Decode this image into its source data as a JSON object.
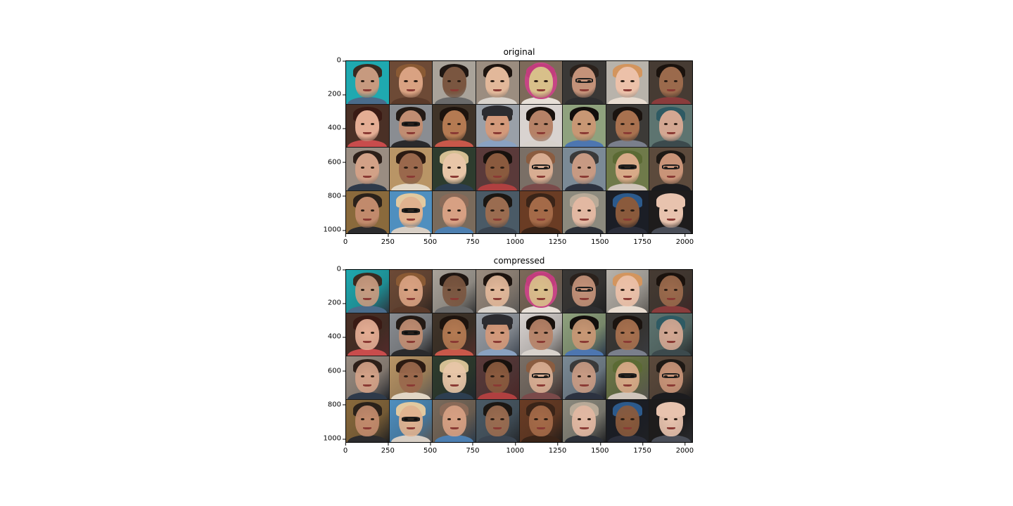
{
  "figure": {
    "panels": [
      {
        "title": "original",
        "yticks": [
          "0",
          "200",
          "400",
          "600",
          "800",
          "1000"
        ],
        "xticks": [
          "0",
          "250",
          "500",
          "750",
          "1000",
          "1250",
          "1500",
          "1750",
          "2000"
        ]
      },
      {
        "title": "compressed",
        "yticks": [
          "0",
          "200",
          "400",
          "600",
          "800",
          "1000"
        ],
        "xticks": [
          "0",
          "250",
          "500",
          "750",
          "1000",
          "1250",
          "1500",
          "1750",
          "2000"
        ]
      }
    ],
    "image_grid": {
      "rows": 4,
      "cols": 8,
      "content": "face-portrait-grid"
    },
    "axis_range": {
      "x": [
        0,
        2048
      ],
      "y": [
        0,
        1024
      ],
      "y_inverted": true
    },
    "tiles": [
      {
        "bg": "#1fa9b0",
        "skin": "#c79a7f",
        "hair": "#3a2a20",
        "shirt": "#4a6b8a"
      },
      {
        "bg": "#6d4a36",
        "skin": "#d9a282",
        "hair": "#8a5a34",
        "shirt": "#5a3a2a"
      },
      {
        "bg": "#a9a39a",
        "skin": "#7a5640",
        "hair": "#1e1612",
        "shirt": "#6a6a6a"
      },
      {
        "bg": "#9b8d80",
        "skin": "#e2b89a",
        "hair": "#1d140f",
        "shirt": "#d9d3cc"
      },
      {
        "bg": "#7d6a5a",
        "skin": "#d8c08a",
        "hair": "#c23d7d",
        "shirt": "#e8e0d8",
        "headscarf": "#c74585"
      },
      {
        "bg": "#3a3836",
        "skin": "#c49279",
        "hair": "#2a211c",
        "shirt": "#2e2e30",
        "glasses": true
      },
      {
        "bg": "#b8b3ab",
        "skin": "#ecc1a9",
        "hair": "#d3955e",
        "shirt": "#e8dcd0"
      },
      {
        "bg": "#463b33",
        "skin": "#9b6a4c",
        "hair": "#1a120d",
        "shirt": "#8a3c3c"
      },
      {
        "bg": "#4a3026",
        "skin": "#e4ad94",
        "hair": "#3a1a14",
        "shirt": "#c94c4c"
      },
      {
        "bg": "#8a8d92",
        "skin": "#c08d72",
        "hair": "#231a15",
        "shirt": "#2a2a2c",
        "glasses": "dark"
      },
      {
        "bg": "#3f3328",
        "skin": "#b47a52",
        "hair": "#1d130d",
        "shirt": "#c8584a"
      },
      {
        "bg": "#9aa0a8",
        "skin": "#d3997a",
        "hair": "#2d2a2b",
        "shirt": "#8aa2c2",
        "cap": "#2c2c30"
      },
      {
        "bg": "#d9d3d0",
        "skin": "#b68267",
        "hair": "#18110d",
        "shirt": "#d8d2cc"
      },
      {
        "bg": "#8fa27e",
        "skin": "#c89774",
        "hair": "#120e0c",
        "shirt": "#4d76b0"
      },
      {
        "bg": "#3c3a37",
        "skin": "#a8714f",
        "hair": "#1a130f",
        "shirt": "#7a7f8c"
      },
      {
        "bg": "#5d7470",
        "skin": "#d3a792",
        "hair": "#2e5a63",
        "shirt": "#3c4a4d"
      },
      {
        "bg": "#9a8d82",
        "skin": "#d2a187",
        "hair": "#2c1f19",
        "shirt": "#2e3a4a"
      },
      {
        "bg": "#b99566",
        "skin": "#9a684c",
        "hair": "#2b1a12",
        "shirt": "#e2d7c6"
      },
      {
        "bg": "#2e3c2e",
        "skin": "#e8c6a8",
        "hair": "#d4bf93",
        "shirt": "#2d3e50"
      },
      {
        "bg": "#5a3a3a",
        "skin": "#8a5a3e",
        "hair": "#18110d",
        "shirt": "#b04040"
      },
      {
        "bg": "#7a6f66",
        "skin": "#d8ad92",
        "hair": "#8a5c40",
        "shirt": "#7a4a4a",
        "glasses": true
      },
      {
        "bg": "#7b8a96",
        "skin": "#c79a83",
        "hair": "#3a3a3a",
        "shirt": "#2c3240"
      },
      {
        "bg": "#6f7a4a",
        "skin": "#d8aa88",
        "hair": "#5b6a34",
        "shirt": "#cfc5bb",
        "glasses": "dark"
      },
      {
        "bg": "#5c4a3c",
        "skin": "#c99478",
        "hair": "#1e1915",
        "shirt": "#1c1c1f",
        "glasses": true
      },
      {
        "bg": "#8a6a3c",
        "skin": "#c18a6c",
        "hair": "#2a211a",
        "shirt": "#2b2b2d"
      },
      {
        "bg": "#4f8fbf",
        "skin": "#e0b28f",
        "hair": "#e2c9a0",
        "shirt": "#d8cfc5",
        "glasses": "dark"
      },
      {
        "bg": "#7a6b5c",
        "skin": "#d7a083",
        "hair": "#8a6a58",
        "shirt": "#4d7fb0"
      },
      {
        "bg": "#4a5a66",
        "skin": "#9a6c50",
        "hair": "#1b1713",
        "shirt": "#3a4450"
      },
      {
        "bg": "#6a3c24",
        "skin": "#a46a48",
        "hair": "#3a2418",
        "shirt": "#3a2418"
      },
      {
        "bg": "#8c8a7e",
        "skin": "#e2b8a2",
        "hair": "#b8aa98",
        "shirt": "#2c3038"
      },
      {
        "bg": "#1b1e26",
        "skin": "#8a5a3c",
        "hair": "#2c5a8c",
        "shirt": "#2b2e3a"
      },
      {
        "bg": "#1e1c1c",
        "skin": "#e8c3ae",
        "hair": "#e8c3ae",
        "shirt": "#4a4e58"
      }
    ]
  }
}
